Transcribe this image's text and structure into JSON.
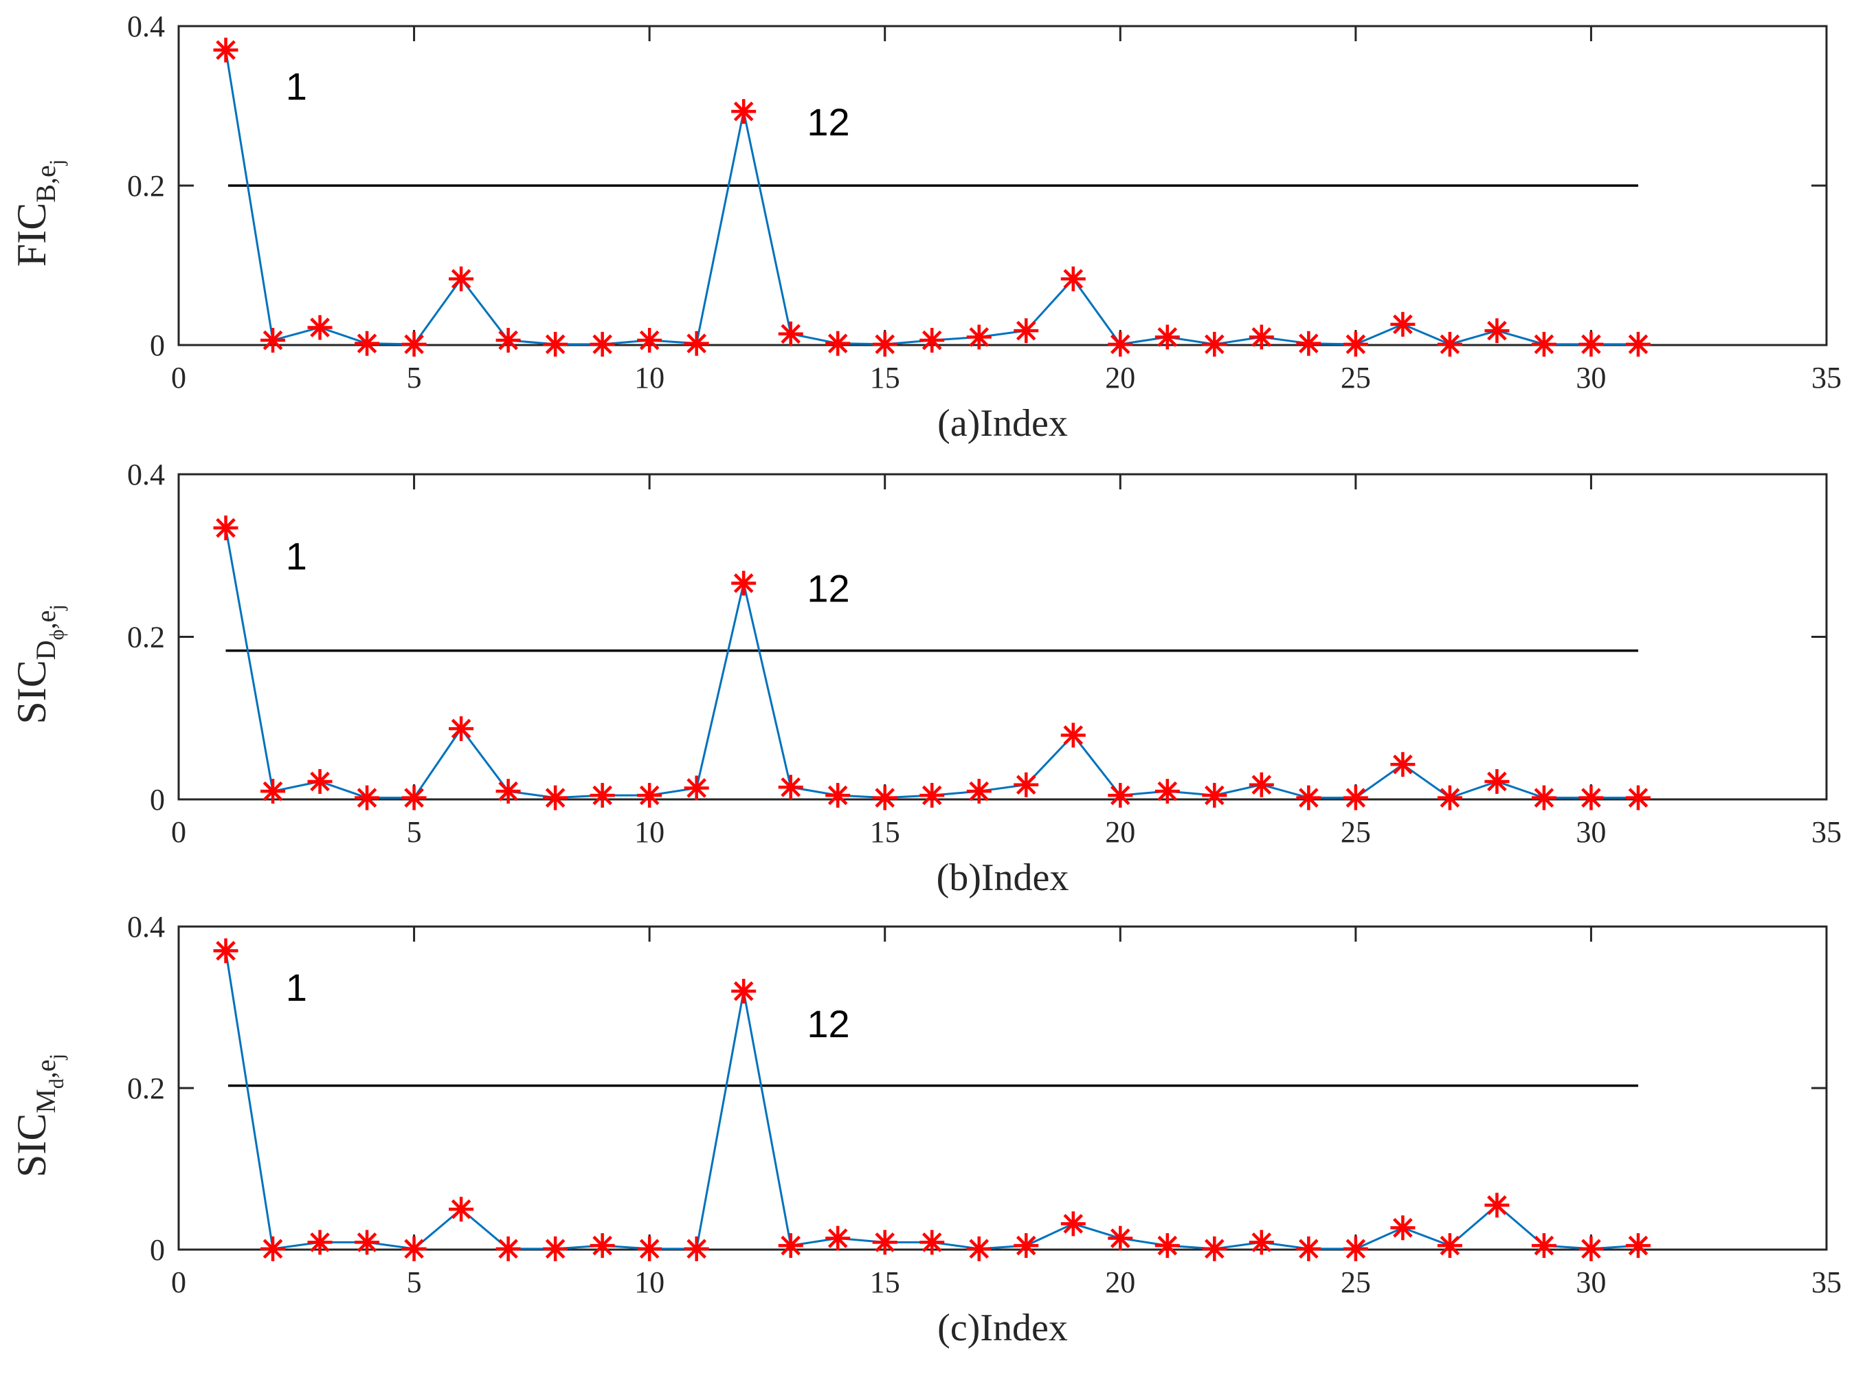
{
  "chart_data": [
    {
      "type": "line",
      "panel": "a",
      "xlabel": "(a)Index",
      "ylabel": {
        "main": "FIC",
        "sub": "B,e",
        "subsub": "j"
      },
      "xlim": [
        0,
        35
      ],
      "ylim": [
        0,
        0.4
      ],
      "xticks": [
        "0",
        "5",
        "10",
        "15",
        "20",
        "25",
        "30",
        "35"
      ],
      "yticks": [
        "0",
        "0.2",
        "0.4"
      ],
      "x": [
        1,
        2,
        3,
        4,
        5,
        6,
        7,
        8,
        9,
        10,
        11,
        12,
        13,
        14,
        15,
        16,
        17,
        18,
        19,
        20,
        21,
        22,
        23,
        24,
        25,
        26,
        27,
        28,
        29,
        30,
        31
      ],
      "values": [
        0.37,
        0.006,
        0.022,
        0.002,
        0.001,
        0.083,
        0.006,
        0.001,
        0.001,
        0.006,
        0.002,
        0.293,
        0.014,
        0.002,
        0.001,
        0.006,
        0.01,
        0.018,
        0.083,
        0.001,
        0.01,
        0.001,
        0.01,
        0.002,
        0.001,
        0.026,
        0.001,
        0.018,
        0.001,
        0.001,
        0.001
      ],
      "threshold": {
        "value": 0.2,
        "x_range": [
          1.05,
          31
        ]
      },
      "annotations": [
        {
          "text": "1",
          "x": 2.5,
          "y": 0.325
        },
        {
          "text": "12",
          "x": 13.8,
          "y": 0.28
        }
      ],
      "colors": {
        "line": "#0072bd",
        "marker": "#ff0000",
        "threshold": "#000000"
      }
    },
    {
      "type": "line",
      "panel": "b",
      "xlabel": "(b)Index",
      "ylabel": {
        "main": "SIC",
        "sub": "D",
        "subsub": "ϕ",
        "sub2": ",e",
        "subsub2": "j"
      },
      "xlim": [
        0,
        35
      ],
      "ylim": [
        0,
        0.4
      ],
      "xticks": [
        "0",
        "5",
        "10",
        "15",
        "20",
        "25",
        "30",
        "35"
      ],
      "yticks": [
        "0",
        "0.2",
        "0.4"
      ],
      "x": [
        1,
        2,
        3,
        4,
        5,
        6,
        7,
        8,
        9,
        10,
        11,
        12,
        13,
        14,
        15,
        16,
        17,
        18,
        19,
        20,
        21,
        22,
        23,
        24,
        25,
        26,
        27,
        28,
        29,
        30,
        31
      ],
      "values": [
        0.334,
        0.01,
        0.022,
        0.002,
        0.002,
        0.087,
        0.01,
        0.002,
        0.005,
        0.005,
        0.014,
        0.266,
        0.015,
        0.005,
        0.002,
        0.005,
        0.01,
        0.018,
        0.079,
        0.005,
        0.01,
        0.005,
        0.018,
        0.002,
        0.002,
        0.043,
        0.002,
        0.022,
        0.002,
        0.002,
        0.002
      ],
      "threshold": {
        "value": 0.183,
        "x_range": [
          1,
          31
        ]
      },
      "annotations": [
        {
          "text": "1",
          "x": 2.5,
          "y": 0.3
        },
        {
          "text": "12",
          "x": 13.8,
          "y": 0.26
        }
      ],
      "colors": {
        "line": "#0072bd",
        "marker": "#ff0000",
        "threshold": "#000000"
      }
    },
    {
      "type": "line",
      "panel": "c",
      "xlabel": "(c)Index",
      "ylabel": {
        "main": "SIC",
        "sub": "M",
        "subsub": "d",
        "sub2": ",e",
        "subsub2": "j"
      },
      "xlim": [
        0,
        35
      ],
      "ylim": [
        0,
        0.4
      ],
      "xticks": [
        "0",
        "5",
        "10",
        "15",
        "20",
        "25",
        "30",
        "35"
      ],
      "yticks": [
        "0",
        "0.2",
        "0.4"
      ],
      "x": [
        1,
        2,
        3,
        4,
        5,
        6,
        7,
        8,
        9,
        10,
        11,
        12,
        13,
        14,
        15,
        16,
        17,
        18,
        19,
        20,
        21,
        22,
        23,
        24,
        25,
        26,
        27,
        28,
        29,
        30,
        31
      ],
      "values": [
        0.37,
        0.001,
        0.009,
        0.009,
        0.001,
        0.05,
        0.001,
        0.001,
        0.005,
        0.001,
        0.001,
        0.32,
        0.005,
        0.014,
        0.009,
        0.009,
        0.001,
        0.005,
        0.032,
        0.014,
        0.005,
        0.001,
        0.009,
        0.001,
        0.001,
        0.027,
        0.005,
        0.055,
        0.005,
        0.001,
        0.005
      ],
      "threshold": {
        "value": 0.203,
        "x_range": [
          1.05,
          31
        ]
      },
      "annotations": [
        {
          "text": "1",
          "x": 2.5,
          "y": 0.325
        },
        {
          "text": "12",
          "x": 13.8,
          "y": 0.28
        }
      ],
      "colors": {
        "line": "#0072bd",
        "marker": "#ff0000",
        "threshold": "#000000"
      }
    }
  ]
}
